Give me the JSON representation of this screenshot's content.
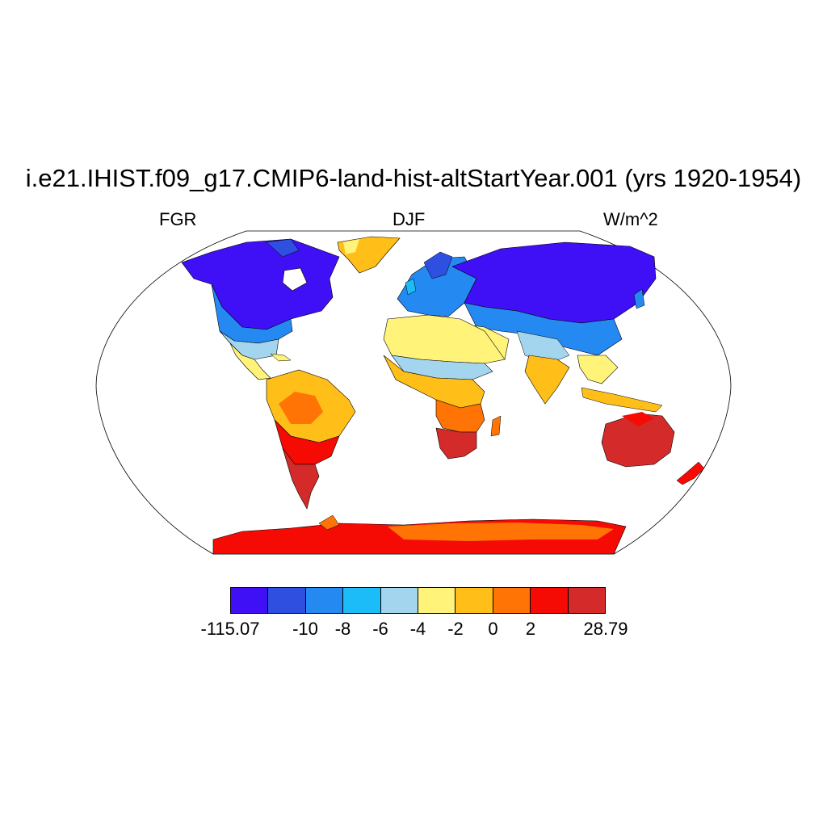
{
  "figure": {
    "title": "i.e21.IHIST.f09_g17.CMIP6-land-hist-altStartYear.001 (yrs 1920-1954)",
    "left_label": "FGR",
    "center_label": "DJF",
    "right_label": "W/m^2"
  },
  "colorbar": {
    "colors": [
      "#3f0ff5",
      "#2e4fe0",
      "#2589f2",
      "#1bbcf7",
      "#a4d5ef",
      "#fff37a",
      "#ffbf18",
      "#ff7404",
      "#f50a04",
      "#d42a2a"
    ],
    "labels": [
      "-115.07",
      "-10",
      "-8",
      "-6",
      "-4",
      "-2",
      "0",
      "2",
      "28.79"
    ]
  },
  "map": {
    "projection": "Robinson",
    "field": "FGR",
    "season": "DJF",
    "units": "W/m^2",
    "background": "#ffffff",
    "coastline_color": "#000000"
  }
}
